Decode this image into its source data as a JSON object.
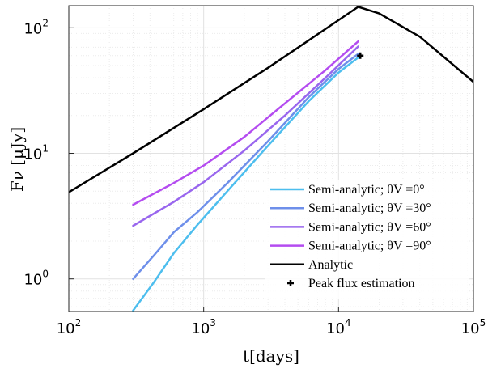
{
  "chart_data": {
    "type": "line",
    "xscale": "log",
    "yscale": "log",
    "xlim": [
      100,
      100000
    ],
    "ylim": [
      0.55,
      150
    ],
    "grid": true,
    "minor_grid": true,
    "xlabel": "t[days]",
    "ylabel": "Fν [μJy]",
    "legend_position": "bottom-right",
    "x_ticks": [
      {
        "value": 100,
        "base": "10",
        "exp": "2"
      },
      {
        "value": 1000,
        "base": "10",
        "exp": "3"
      },
      {
        "value": 10000,
        "base": "10",
        "exp": "4"
      },
      {
        "value": 100000,
        "base": "10",
        "exp": "5"
      }
    ],
    "y_ticks": [
      {
        "value": 1,
        "base": "10",
        "exp": "0"
      },
      {
        "value": 10,
        "base": "10",
        "exp": "1"
      },
      {
        "value": 100,
        "base": "10",
        "exp": "2"
      }
    ],
    "series": [
      {
        "name": "Semi-analytic; θV =0°",
        "color": "#4DBEEE",
        "x": [
          300,
          430,
          600,
          900,
          1500,
          3000,
          6000,
          10000,
          14000
        ],
        "y": [
          0.56,
          0.95,
          1.6,
          2.7,
          5.0,
          11.5,
          26,
          44,
          58
        ]
      },
      {
        "name": "Semi-analytic; θV =30°",
        "color": "#6E8FEA",
        "x": [
          300,
          430,
          600,
          900,
          1500,
          3000,
          6000,
          10000,
          14000
        ],
        "y": [
          1.0,
          1.55,
          2.35,
          3.4,
          5.8,
          12.5,
          28,
          47,
          62
        ]
      },
      {
        "name": "Semi-analytic; θV =60°",
        "color": "#9966EE",
        "x": [
          300,
          600,
          1000,
          2000,
          4000,
          8000,
          14000
        ],
        "y": [
          2.65,
          4.1,
          5.9,
          10.5,
          20,
          40,
          71
        ]
      },
      {
        "name": "Semi-analytic; θV =90°",
        "color": "#B44CF0",
        "x": [
          300,
          600,
          1000,
          2000,
          4000,
          8000,
          14000
        ],
        "y": [
          3.9,
          5.8,
          8.0,
          13.5,
          25,
          46,
          78
        ]
      },
      {
        "name": "Analytic",
        "color": "#000000",
        "x": [
          100,
          300,
          1000,
          3000,
          10000,
          14000,
          20000,
          40000,
          100000
        ],
        "y": [
          4.9,
          10.0,
          22.5,
          48,
          115,
          147,
          130,
          85,
          37
        ]
      }
    ],
    "markers": [
      {
        "name": "Peak flux estimation",
        "symbol": "+",
        "x": 14500,
        "y": 60
      }
    ]
  }
}
